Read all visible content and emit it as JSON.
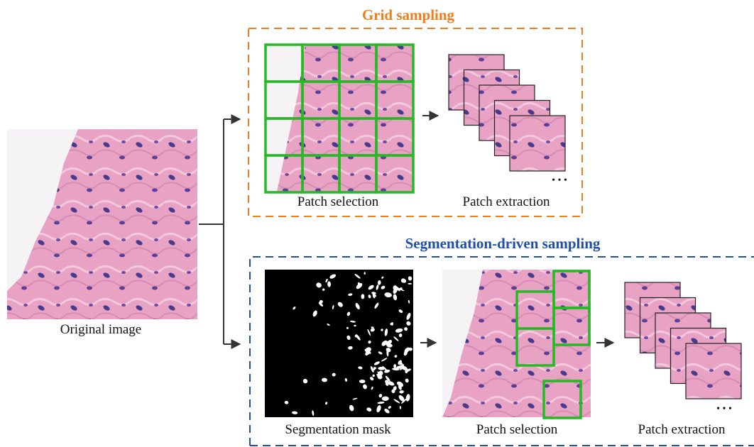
{
  "original_image": {
    "label": "Original image"
  },
  "grid_sampling": {
    "title": "Grid sampling",
    "patch_selection_label": "Patch selection",
    "patch_extraction_label": "Patch extraction",
    "ellipsis": "• • •"
  },
  "segmentation_sampling": {
    "title": "Segmentation-driven sampling",
    "mask_label": "Segmentation mask",
    "patch_selection_label": "Patch selection",
    "patch_extraction_label": "Patch extraction",
    "ellipsis": "• • •"
  }
}
